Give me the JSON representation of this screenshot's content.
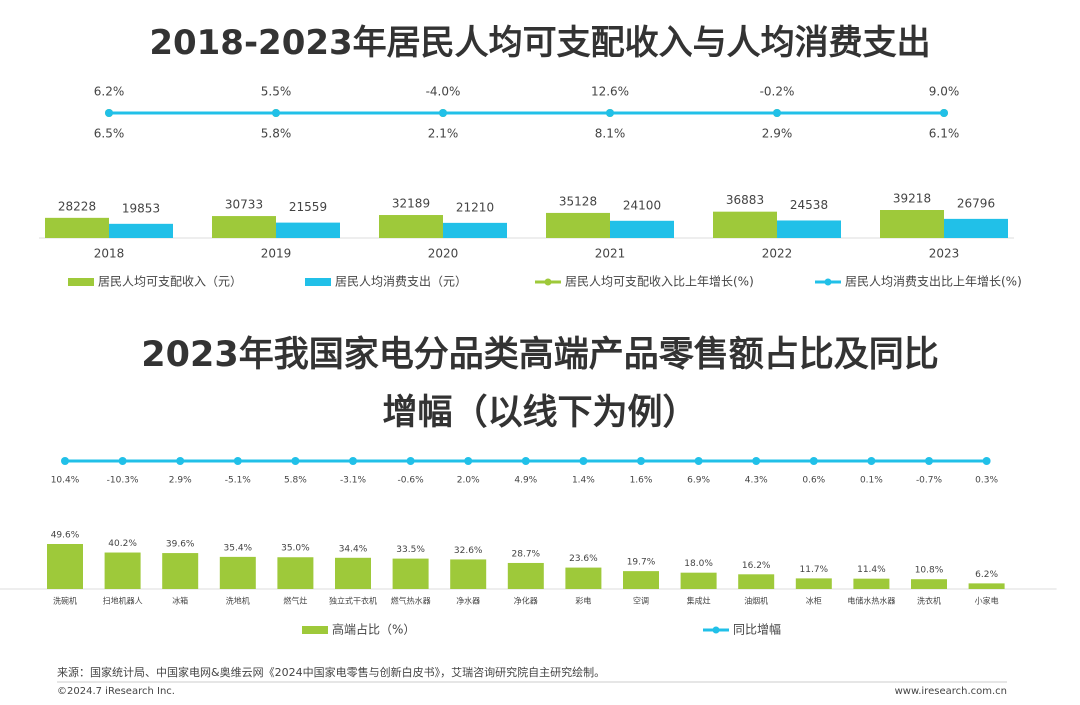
{
  "chart_data": [
    {
      "type": "bar",
      "title": "2018-2023年居民人均可支配收入与人均消费支出",
      "categories": [
        "2018",
        "2019",
        "2020",
        "2021",
        "2022",
        "2023"
      ],
      "series": [
        {
          "name": "居民人均可支配收入（元）",
          "type": "bar",
          "color": "#9ec93a",
          "values": [
            28228,
            30733,
            32189,
            35128,
            36883,
            39218
          ]
        },
        {
          "name": "居民人均消费支出（元）",
          "type": "bar",
          "color": "#21c0e8",
          "values": [
            19853,
            21559,
            21210,
            24100,
            24538,
            26796
          ]
        },
        {
          "name": "居民人均可支配收入比上年增长(%)",
          "type": "line",
          "color": "#9ec93a",
          "values": [
            6.5,
            5.8,
            2.1,
            8.1,
            2.9,
            6.1
          ],
          "value_labels": [
            "6.5%",
            "5.8%",
            "2.1%",
            "8.1%",
            "2.9%",
            "6.1%"
          ]
        },
        {
          "name": "居民人均消费支出比上年增长(%)",
          "type": "line",
          "color": "#21c0e8",
          "values": [
            6.2,
            5.5,
            -4.0,
            12.6,
            -0.2,
            9.0
          ],
          "value_labels": [
            "6.2%",
            "5.5%",
            "-4.0%",
            "12.6%",
            "-0.2%",
            "9.0%"
          ]
        }
      ]
    },
    {
      "type": "bar",
      "title": "2023年我国家电分品类高端产品零售额占比及同比增幅（以线下为例）",
      "categories": [
        "洗碗机",
        "扫地机器人",
        "冰箱",
        "洗地机",
        "燃气灶",
        "独立式干衣机",
        "燃气热水器",
        "净水器",
        "净化器",
        "彩电",
        "空调",
        "集成灶",
        "油烟机",
        "冰柜",
        "电储水热水器",
        "洗衣机",
        "小家电"
      ],
      "series": [
        {
          "name": "高端占比（%）",
          "type": "bar",
          "color": "#9ec93a",
          "values": [
            49.6,
            40.2,
            39.6,
            35.4,
            35.0,
            34.4,
            33.5,
            32.6,
            28.7,
            23.6,
            19.7,
            18.0,
            16.2,
            11.7,
            11.4,
            10.8,
            6.2
          ],
          "value_labels": [
            "49.6%",
            "40.2%",
            "39.6%",
            "35.4%",
            "35.0%",
            "34.4%",
            "33.5%",
            "32.6%",
            "28.7%",
            "23.6%",
            "19.7%",
            "18.0%",
            "16.2%",
            "11.7%",
            "11.4%",
            "10.8%",
            "6.2%"
          ]
        },
        {
          "name": "同比增幅",
          "type": "line",
          "color": "#21c0e8",
          "values": [
            10.4,
            -10.3,
            2.9,
            -5.1,
            5.8,
            -3.1,
            -0.6,
            2.0,
            4.9,
            1.4,
            1.6,
            6.9,
            4.3,
            0.6,
            0.1,
            -0.7,
            0.3
          ],
          "value_labels": [
            "10.4%",
            "-10.3%",
            "2.9%",
            "-5.1%",
            "5.8%",
            "-3.1%",
            "-0.6%",
            "2.0%",
            "4.9%",
            "1.4%",
            "1.6%",
            "6.9%",
            "4.3%",
            "0.6%",
            "0.1%",
            "-0.7%",
            "0.3%"
          ]
        }
      ]
    }
  ],
  "source": "来源：国家统计局、中国家电网&奥维云网《2024中国家电零售与创新白皮书》，艾瑞咨询研究院自主研究绘制。",
  "copyright": "©2024.7 iResearch Inc.",
  "website": "www.iresearch.com.cn"
}
